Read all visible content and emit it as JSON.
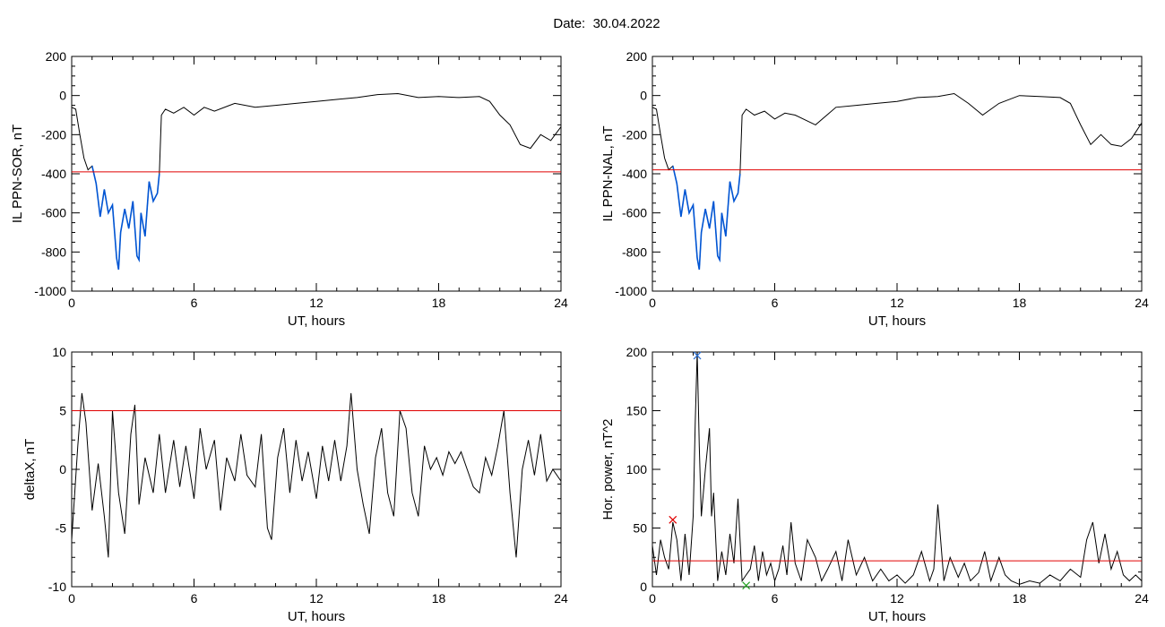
{
  "header": {
    "date_label": "Date:",
    "date_value": "30.04.2022"
  },
  "colors": {
    "trace": "#000000",
    "highlight": "#0055d4",
    "threshold": "#e00000",
    "marker_red": "#e00000",
    "marker_blue": "#2a6fd6",
    "marker_green": "#20a020"
  },
  "chart_data": [
    {
      "type": "line",
      "xlabel": "UT, hours",
      "ylabel": "IL PPN-SOR, nT",
      "xlim": [
        0,
        24
      ],
      "ylim": [
        -1000,
        200
      ],
      "xticks": [
        0,
        6,
        12,
        18,
        24
      ],
      "yticks": [
        -1000,
        -800,
        -600,
        -400,
        -200,
        0,
        200
      ],
      "threshold": -390,
      "highlight_range": [
        0.9,
        4.3
      ],
      "series": [
        {
          "x": [
            0,
            0.2,
            0.4,
            0.6,
            0.8,
            1.0,
            1.2,
            1.4,
            1.6,
            1.8,
            2.0,
            2.2,
            2.3,
            2.4,
            2.6,
            2.8,
            3.0,
            3.2,
            3.3,
            3.4,
            3.6,
            3.8,
            4.0,
            4.2,
            4.3,
            4.4,
            4.6,
            5.0,
            5.5,
            6.0,
            6.5,
            7.0,
            8.0,
            9.0,
            10.0,
            11.0,
            12.0,
            13.0,
            14.0,
            15.0,
            16.0,
            17.0,
            18.0,
            19.0,
            20.0,
            20.5,
            21.0,
            21.5,
            22.0,
            22.5,
            23.0,
            23.5,
            24.0
          ],
          "y": [
            -60,
            -70,
            -200,
            -320,
            -380,
            -360,
            -450,
            -620,
            -480,
            -600,
            -560,
            -830,
            -890,
            -700,
            -580,
            -680,
            -540,
            -820,
            -840,
            -600,
            -720,
            -440,
            -540,
            -500,
            -400,
            -100,
            -70,
            -90,
            -60,
            -100,
            -60,
            -80,
            -40,
            -60,
            -50,
            -40,
            -30,
            -20,
            -10,
            5,
            10,
            -10,
            -5,
            -10,
            -5,
            -30,
            -100,
            -150,
            -250,
            -270,
            -200,
            -230,
            -160
          ]
        }
      ]
    },
    {
      "type": "line",
      "xlabel": "UT, hours",
      "ylabel": "IL PPN-NAL, nT",
      "xlim": [
        0,
        24
      ],
      "ylim": [
        -1000,
        200
      ],
      "xticks": [
        0,
        6,
        12,
        18,
        24
      ],
      "yticks": [
        -1000,
        -800,
        -600,
        -400,
        -200,
        0,
        200
      ],
      "threshold": -380,
      "highlight_range": [
        0.9,
        4.3
      ],
      "series": [
        {
          "x": [
            0,
            0.2,
            0.4,
            0.6,
            0.8,
            1.0,
            1.2,
            1.4,
            1.6,
            1.8,
            2.0,
            2.2,
            2.3,
            2.4,
            2.6,
            2.8,
            3.0,
            3.2,
            3.3,
            3.4,
            3.6,
            3.8,
            4.0,
            4.2,
            4.3,
            4.4,
            4.6,
            5.0,
            5.5,
            6.0,
            6.5,
            7.0,
            8.0,
            9.0,
            10.0,
            11.0,
            12.0,
            13.0,
            14.0,
            14.8,
            15.5,
            16.2,
            17.0,
            18.0,
            19.0,
            20.0,
            20.5,
            21.0,
            21.5,
            22.0,
            22.5,
            23.0,
            23.5,
            24.0
          ],
          "y": [
            -60,
            -70,
            -200,
            -320,
            -380,
            -360,
            -450,
            -620,
            -480,
            -600,
            -560,
            -830,
            -890,
            -700,
            -580,
            -680,
            -540,
            -820,
            -840,
            -600,
            -720,
            -440,
            -540,
            -500,
            -400,
            -100,
            -70,
            -100,
            -80,
            -120,
            -90,
            -100,
            -150,
            -60,
            -50,
            -40,
            -30,
            -10,
            -5,
            10,
            -40,
            -100,
            -40,
            0,
            -5,
            -10,
            -40,
            -150,
            -250,
            -200,
            -250,
            -260,
            -220,
            -140
          ]
        }
      ]
    },
    {
      "type": "line",
      "xlabel": "UT, hours",
      "ylabel": "deltaX, nT",
      "xlim": [
        0,
        24
      ],
      "ylim": [
        -10,
        10
      ],
      "xticks": [
        0,
        6,
        12,
        18,
        24
      ],
      "yticks": [
        -10,
        -5,
        0,
        5,
        10
      ],
      "threshold": 5,
      "series": [
        {
          "x": [
            0,
            0.3,
            0.5,
            0.7,
            1.0,
            1.3,
            1.6,
            1.8,
            2.0,
            2.3,
            2.6,
            2.9,
            3.1,
            3.3,
            3.6,
            4.0,
            4.3,
            4.6,
            5.0,
            5.3,
            5.6,
            6.0,
            6.3,
            6.6,
            7.0,
            7.3,
            7.6,
            8.0,
            8.3,
            8.6,
            9.0,
            9.3,
            9.6,
            9.8,
            10.1,
            10.4,
            10.7,
            11.0,
            11.3,
            11.6,
            12.0,
            12.3,
            12.6,
            12.9,
            13.2,
            13.5,
            13.7,
            14.0,
            14.3,
            14.6,
            14.9,
            15.2,
            15.5,
            15.8,
            16.1,
            16.4,
            16.7,
            17.0,
            17.3,
            17.6,
            17.9,
            18.2,
            18.5,
            18.8,
            19.1,
            19.4,
            19.7,
            20.0,
            20.3,
            20.6,
            20.9,
            21.2,
            21.5,
            21.8,
            22.1,
            22.4,
            22.7,
            23.0,
            23.3,
            23.6,
            24.0
          ],
          "y": [
            -6,
            2,
            6.5,
            4,
            -3.5,
            0.5,
            -4,
            -7.5,
            5,
            -2,
            -5.5,
            3,
            5.5,
            -3,
            1,
            -2,
            3,
            -2,
            2.5,
            -1.5,
            2,
            -2.5,
            3.5,
            0,
            2.5,
            -3.5,
            1,
            -1,
            3,
            -0.5,
            -1.5,
            3,
            -5,
            -6,
            1,
            3.5,
            -2,
            2.5,
            -1,
            1.5,
            -2.5,
            2,
            -1,
            2.5,
            -1,
            2,
            6.5,
            0,
            -3,
            -5.5,
            1,
            3.5,
            -2,
            -4,
            5,
            3.5,
            -2,
            -4,
            2,
            0,
            1,
            -0.5,
            1.5,
            0.5,
            1.5,
            0,
            -1.5,
            -2,
            1,
            -0.5,
            2,
            5,
            -2,
            -7.5,
            0,
            2.5,
            -0.5,
            3,
            -1,
            0,
            -1
          ]
        }
      ]
    },
    {
      "type": "line",
      "xlabel": "UT, hours",
      "ylabel": "Hor. power, nT^2",
      "xlim": [
        0,
        24
      ],
      "ylim": [
        0,
        200
      ],
      "xticks": [
        0,
        6,
        12,
        18,
        24
      ],
      "yticks": [
        0,
        50,
        100,
        150,
        200
      ],
      "threshold": 22,
      "markers": [
        {
          "x": 1.0,
          "y": 57,
          "color_key": "marker_red"
        },
        {
          "x": 2.2,
          "y": 197,
          "color_key": "marker_blue"
        },
        {
          "x": 4.6,
          "y": 1,
          "color_key": "marker_green"
        }
      ],
      "series": [
        {
          "x": [
            0,
            0.2,
            0.4,
            0.6,
            0.8,
            1.0,
            1.2,
            1.4,
            1.6,
            1.8,
            2.0,
            2.1,
            2.2,
            2.3,
            2.4,
            2.6,
            2.8,
            2.9,
            3.0,
            3.2,
            3.4,
            3.6,
            3.8,
            4.0,
            4.2,
            4.4,
            4.6,
            4.8,
            5.0,
            5.2,
            5.4,
            5.6,
            5.8,
            6.0,
            6.2,
            6.4,
            6.6,
            6.8,
            7.0,
            7.3,
            7.6,
            8.0,
            8.3,
            8.6,
            9.0,
            9.3,
            9.6,
            10.0,
            10.4,
            10.8,
            11.2,
            11.6,
            12.0,
            12.4,
            12.8,
            13.2,
            13.6,
            13.8,
            14.0,
            14.3,
            14.6,
            15.0,
            15.3,
            15.6,
            16.0,
            16.3,
            16.6,
            17.0,
            17.3,
            17.6,
            18.0,
            18.5,
            19.0,
            19.5,
            20.0,
            20.5,
            21.0,
            21.3,
            21.6,
            21.9,
            22.2,
            22.5,
            22.8,
            23.1,
            23.4,
            23.7,
            24.0
          ],
          "y": [
            35,
            10,
            40,
            25,
            15,
            55,
            40,
            5,
            45,
            10,
            60,
            140,
            200,
            120,
            60,
            100,
            135,
            60,
            80,
            5,
            30,
            10,
            45,
            20,
            75,
            5,
            10,
            15,
            35,
            5,
            30,
            10,
            20,
            5,
            15,
            35,
            10,
            55,
            20,
            5,
            40,
            25,
            5,
            15,
            30,
            5,
            40,
            10,
            25,
            5,
            15,
            5,
            10,
            3,
            10,
            30,
            5,
            15,
            70,
            5,
            25,
            8,
            20,
            5,
            12,
            30,
            5,
            25,
            10,
            5,
            2,
            5,
            3,
            10,
            5,
            15,
            8,
            40,
            55,
            20,
            45,
            15,
            30,
            10,
            5,
            10,
            5
          ]
        }
      ]
    }
  ]
}
